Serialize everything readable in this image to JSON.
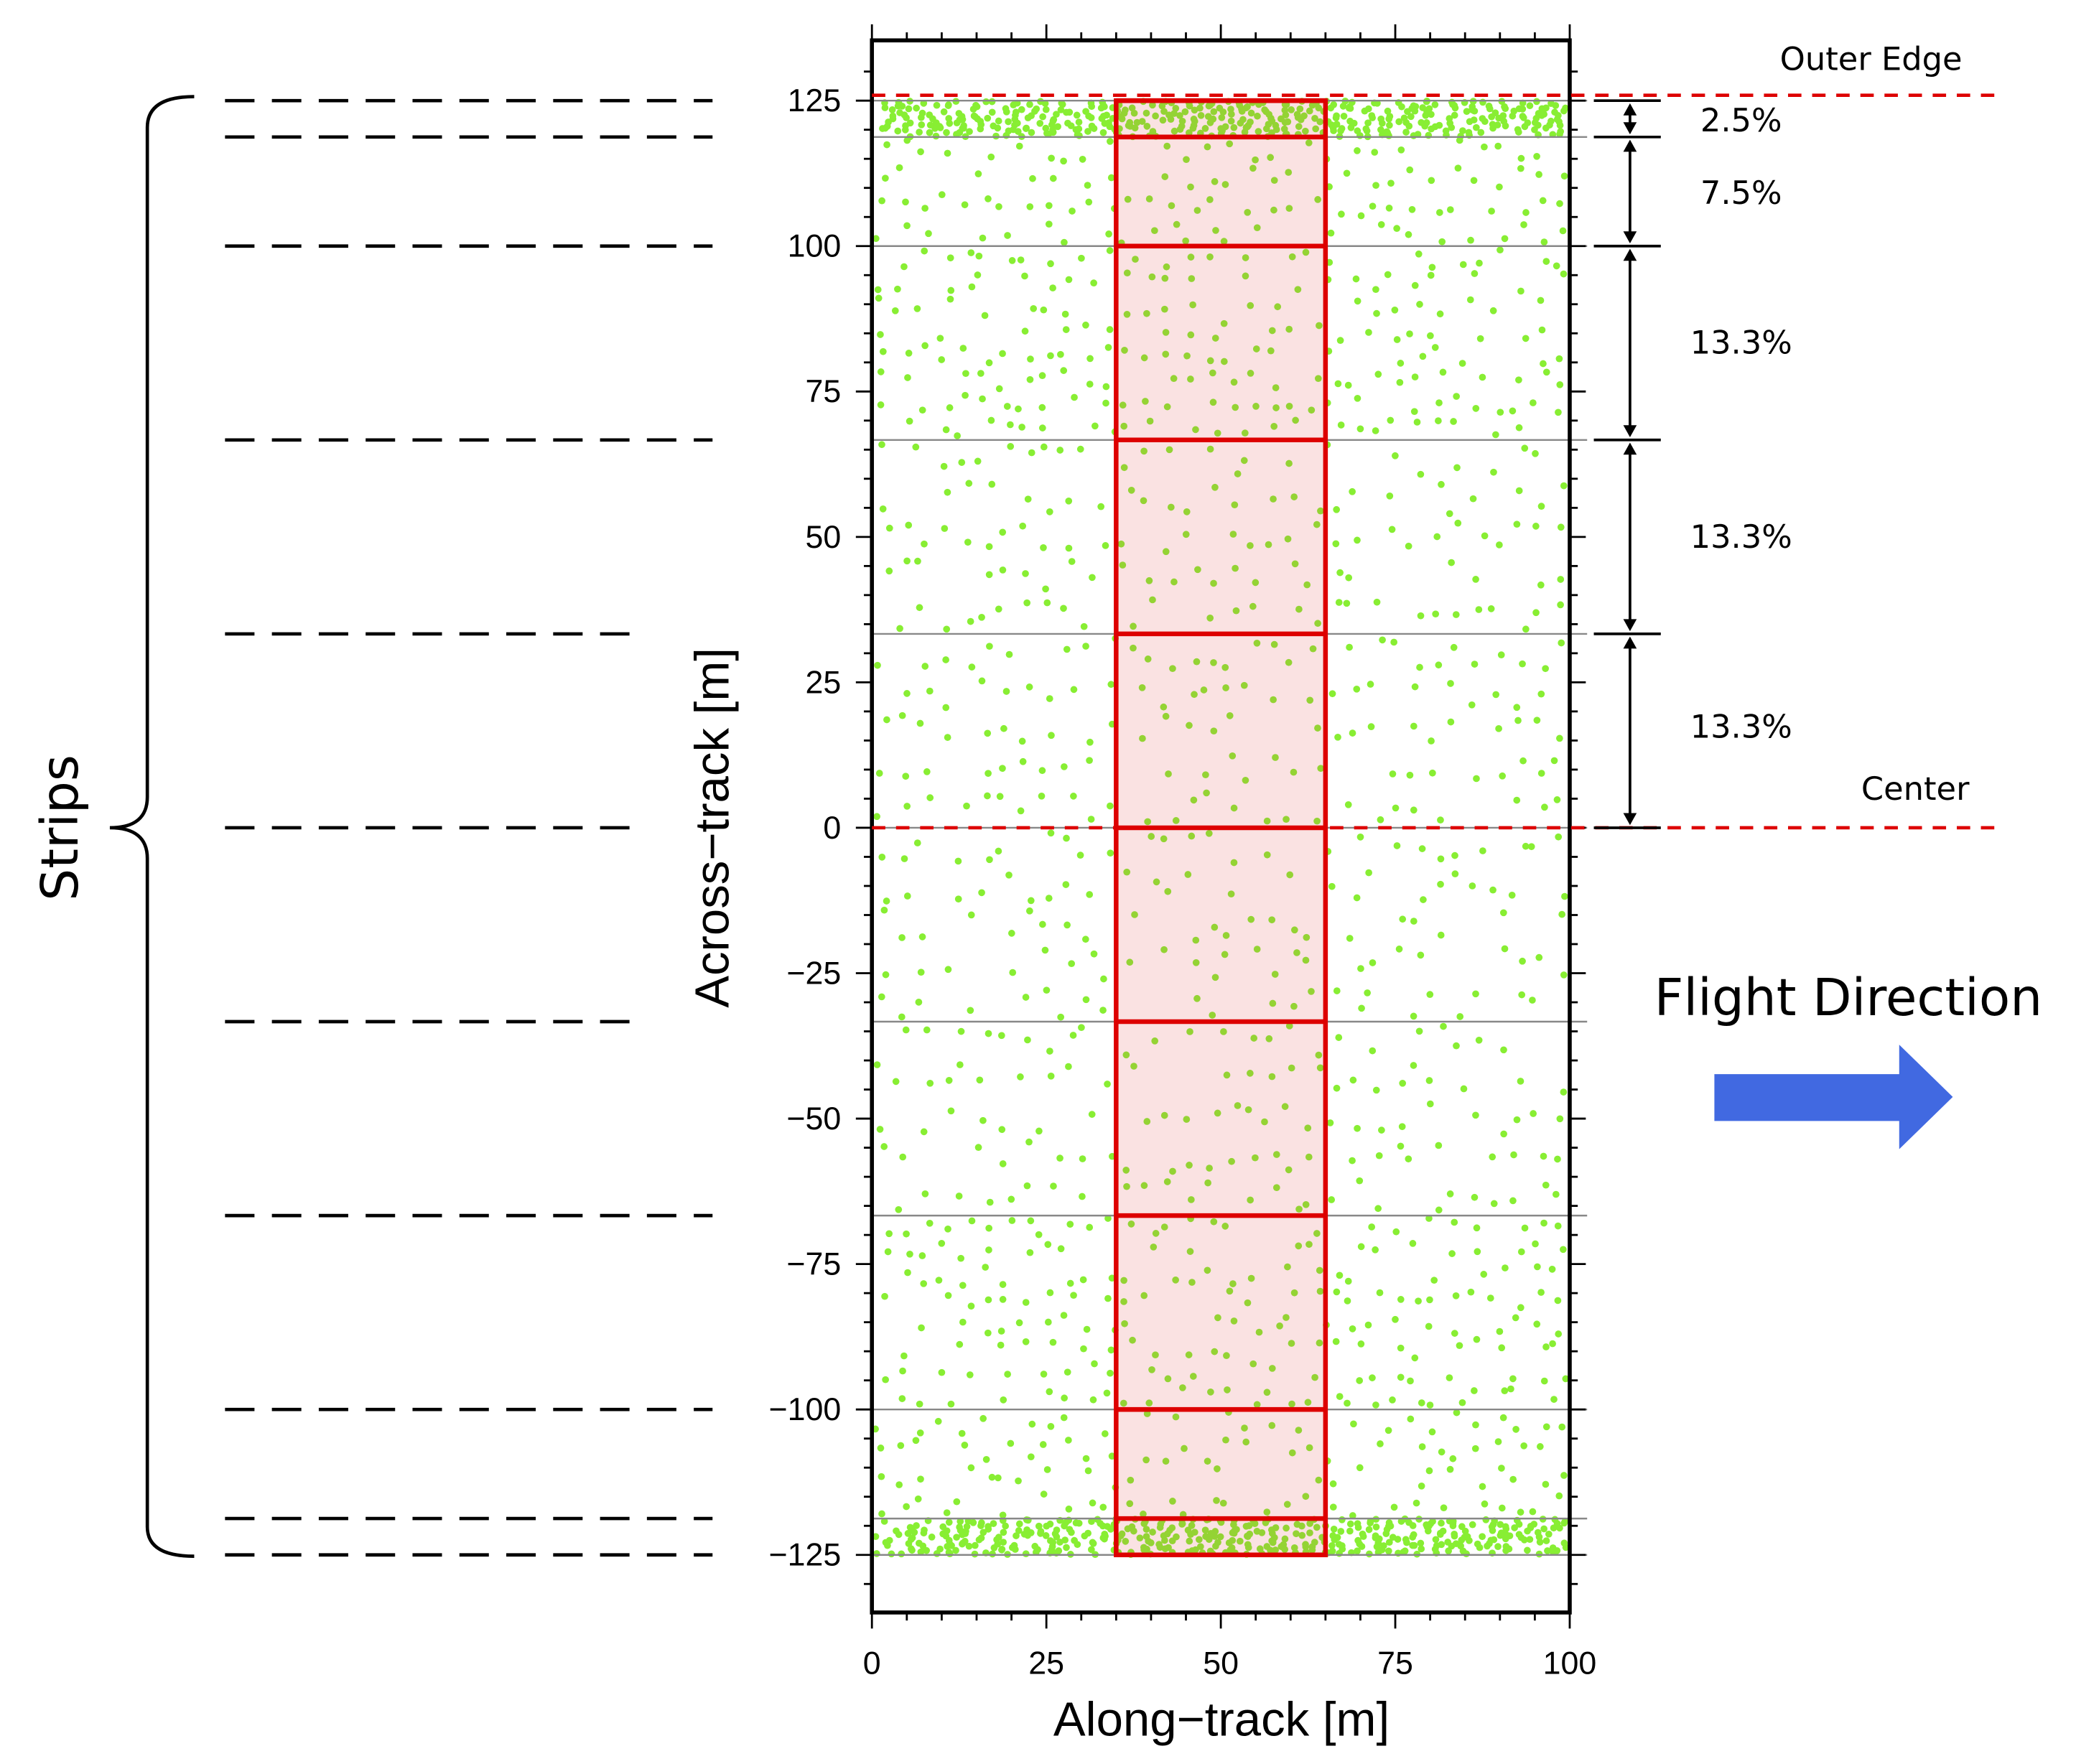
{
  "chart_data": {
    "type": "scatter",
    "xlabel": "Along−track [m]",
    "ylabel": "Across−track [m]",
    "xlim": [
      0,
      100
    ],
    "ylim": [
      -135,
      135
    ],
    "xticks": [
      "0",
      "25",
      "50",
      "75",
      "100"
    ],
    "xtick_values": [
      0,
      25,
      50,
      75,
      100
    ],
    "yticks": [
      "125",
      "100",
      "75",
      "50",
      "25",
      "0",
      "−25",
      "−50",
      "−75",
      "−100",
      "−125"
    ],
    "ytick_values": [
      125,
      100,
      75,
      50,
      25,
      0,
      -25,
      -50,
      -75,
      -100,
      -125
    ],
    "strip_boundaries": [
      125,
      118.75,
      100,
      66.67,
      33.33,
      0,
      -33.33,
      -66.67,
      -100,
      -118.75,
      -125
    ],
    "highlight_box_x": [
      35,
      65
    ],
    "point_color": "#88ee33",
    "box_color": "#dd0000"
  },
  "annotations": {
    "outer_edge": "Outer Edge",
    "center": "Center",
    "strips": "Strips",
    "flight_direction": "Flight Direction",
    "flight_arrow_color": "#4169e1",
    "percentages": [
      {
        "label": "2.5%",
        "from": 125,
        "to": 118.75
      },
      {
        "label": "7.5%",
        "from": 118.75,
        "to": 100
      },
      {
        "label": "13.3%",
        "from": 100,
        "to": 66.67
      },
      {
        "label": "13.3%",
        "from": 66.67,
        "to": 33.33
      },
      {
        "label": "13.3%",
        "from": 33.33,
        "to": 0
      }
    ]
  }
}
